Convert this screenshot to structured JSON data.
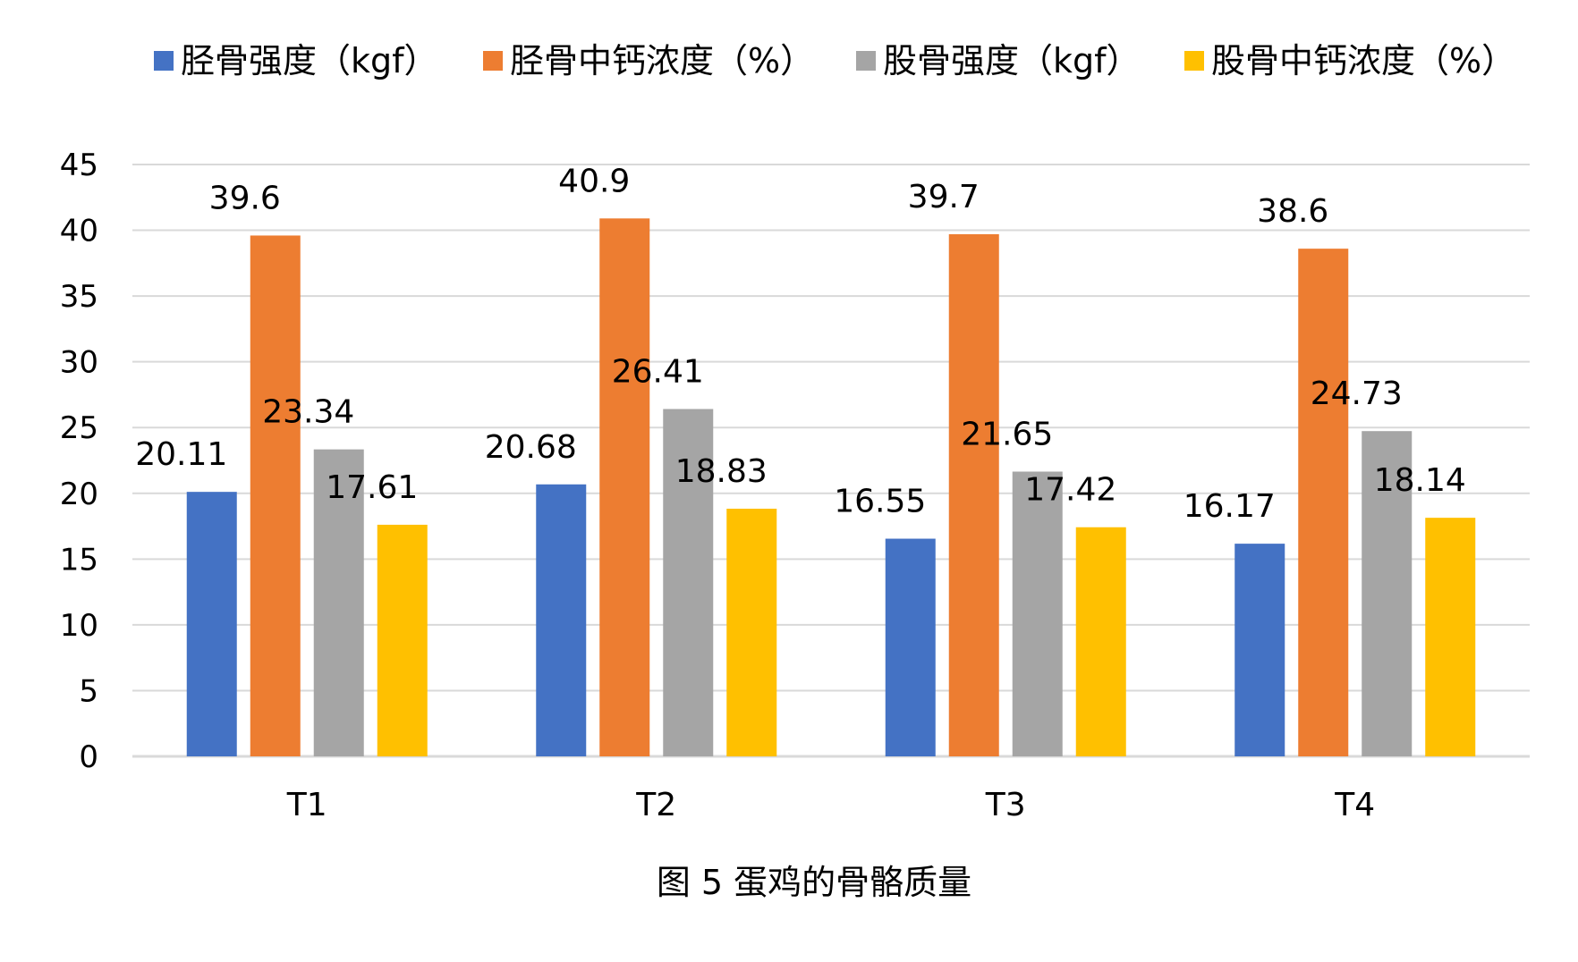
{
  "chart_data": {
    "type": "bar",
    "title": "",
    "caption": "图 5 蛋鸡的骨骼质量",
    "xlabel": "",
    "ylabel": "",
    "categories": [
      "T1",
      "T2",
      "T3",
      "T4"
    ],
    "series": [
      {
        "name": "胫骨强度（kgf）",
        "color": "#4472C4",
        "values": [
          20.11,
          20.68,
          16.55,
          16.17
        ],
        "labels": [
          "20.11",
          "20.68",
          "16.55",
          "16.17"
        ]
      },
      {
        "name": "胫骨中钙浓度（%）",
        "color": "#ED7D31",
        "values": [
          39.6,
          40.9,
          39.7,
          38.6
        ],
        "labels": [
          "39.6",
          "40.9",
          "39.7",
          "38.6"
        ]
      },
      {
        "name": "股骨强度（kgf）",
        "color": "#A5A5A5",
        "values": [
          23.34,
          26.41,
          21.65,
          24.73
        ],
        "labels": [
          "23.34",
          "26.41",
          "21.65",
          "24.73"
        ]
      },
      {
        "name": "股骨中钙浓度（%）",
        "color": "#FFC000",
        "values": [
          17.61,
          18.83,
          17.42,
          18.14
        ],
        "labels": [
          "17.61",
          "18.83",
          "17.42",
          "18.14"
        ]
      }
    ],
    "ylim": [
      0,
      45
    ],
    "yticks": [
      "0",
      "5",
      "10",
      "15",
      "20",
      "25",
      "30",
      "35",
      "40",
      "45"
    ],
    "grid": true,
    "gridColor": "#D9D9D9",
    "legend": "top"
  }
}
